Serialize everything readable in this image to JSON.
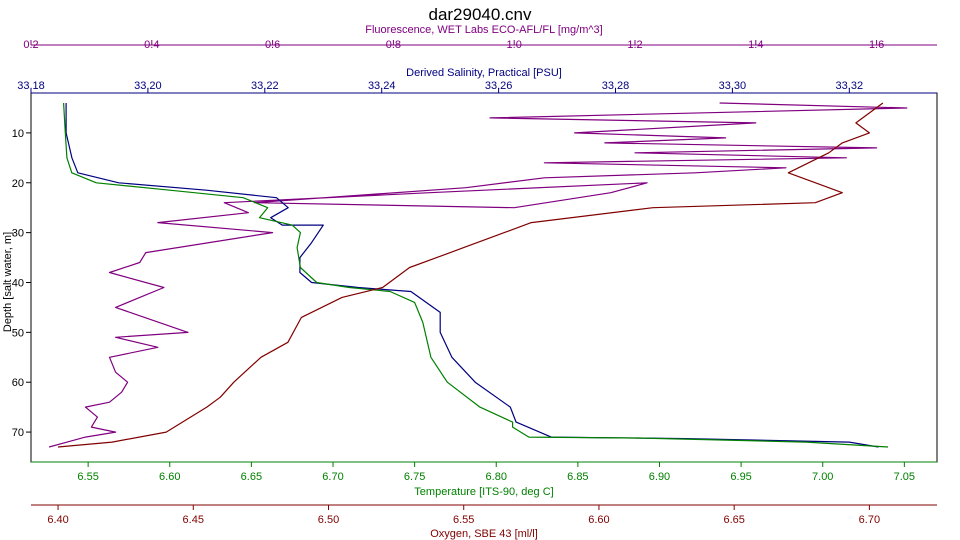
{
  "chart_data": {
    "type": "line",
    "title": "dar29040.cnv",
    "grid": false,
    "legend": "none",
    "y_axis": {
      "label": "Depth [salt water, m]",
      "ticks": [
        "10",
        "20",
        "30",
        "40",
        "50",
        "60",
        "70"
      ],
      "range": [
        2,
        76
      ],
      "inverted": true,
      "color": "#000000"
    },
    "top_axes": [
      {
        "key": "fluorescence",
        "label": "Fluorescence, WET Labs ECO-AFL/FL [mg/m^3]",
        "ticks": [
          "0.2",
          "0.4",
          "0.6",
          "0.8",
          "1.0",
          "1.2",
          "1.4",
          "1.6"
        ],
        "range": [
          0.2,
          1.7
        ],
        "color": "#800080"
      },
      {
        "key": "salinity",
        "label": "Derived Salinity, Practical [PSU]",
        "ticks": [
          "33.18",
          "33.20",
          "33.22",
          "33.24",
          "33.26",
          "33.28",
          "33.30",
          "33.32"
        ],
        "range": [
          33.18,
          33.335
        ],
        "color": "#000080"
      }
    ],
    "bottom_axes": [
      {
        "key": "temperature",
        "label": "Temperature [ITS-90, deg C]",
        "ticks": [
          "6.55",
          "6.60",
          "6.65",
          "6.70",
          "6.75",
          "6.80",
          "6.85",
          "6.90",
          "6.95",
          "7.00",
          "7.05"
        ],
        "range": [
          6.515,
          7.07
        ],
        "color": "#008000"
      },
      {
        "key": "oxygen",
        "label": "Oxygen, SBE 43 [ml/l]",
        "ticks": [
          "6.40",
          "6.45",
          "6.50",
          "6.55",
          "6.60",
          "6.65",
          "6.70"
        ],
        "range": [
          6.39,
          6.725
        ],
        "color": "#800000"
      }
    ],
    "series": [
      {
        "key": "fluorescence",
        "color": "#800080",
        "x": [
          1.34,
          1.65,
          0.96,
          1.4,
          1.1,
          1.35,
          1.15,
          1.6,
          1.2,
          1.55,
          1.05,
          1.45,
          1.3,
          1.05,
          0.92,
          0.57,
          1.0,
          1.16,
          1.22,
          0.86,
          0.52,
          0.56,
          0.41,
          0.6,
          0.39,
          0.38,
          0.33,
          0.42,
          0.34,
          0.46,
          0.34,
          0.41,
          0.33,
          0.34,
          0.36,
          0.35,
          0.33,
          0.29,
          0.3,
          0.31,
          0.3,
          0.34,
          0.29,
          0.26,
          0.23
        ],
        "y": [
          4,
          5,
          7,
          8,
          10,
          11,
          12,
          13,
          14,
          15,
          16,
          17,
          18,
          19,
          21,
          24,
          25,
          22,
          20,
          22,
          24,
          26,
          28,
          30,
          34,
          36,
          38,
          41,
          45,
          50,
          51,
          53,
          55,
          58,
          60,
          62,
          64,
          65,
          66,
          67,
          69,
          70,
          71,
          72,
          73
        ]
      },
      {
        "key": "salinity",
        "color": "#000080",
        "x": [
          33.186,
          33.186,
          33.187,
          33.188,
          33.195,
          33.21,
          33.222,
          33.224,
          33.221,
          33.223,
          33.23,
          33.228,
          33.226,
          33.226,
          33.228,
          33.236,
          33.245,
          33.25,
          33.25,
          33.252,
          33.256,
          33.262,
          33.263,
          33.269,
          33.292,
          33.32,
          33.325
        ],
        "y": [
          4,
          10,
          15,
          18,
          20,
          21.5,
          23,
          25,
          27,
          28.5,
          28.5,
          32,
          35,
          38,
          40,
          41,
          41.8,
          46,
          50,
          55,
          60,
          65,
          68,
          71,
          71.3,
          72,
          73
        ]
      },
      {
        "key": "temperature",
        "color": "#008000",
        "x": [
          6.535,
          6.536,
          6.537,
          6.54,
          6.555,
          6.6,
          6.645,
          6.66,
          6.655,
          6.675,
          6.68,
          6.678,
          6.68,
          6.69,
          6.71,
          6.735,
          6.75,
          6.755,
          6.76,
          6.77,
          6.79,
          6.81,
          6.81,
          6.82,
          6.89,
          6.99,
          7.04
        ],
        "y": [
          4,
          10,
          15,
          18,
          20,
          21.5,
          23,
          25,
          27,
          28.5,
          30,
          33,
          37,
          40,
          41,
          41.8,
          44,
          48,
          55,
          60,
          65,
          68,
          69,
          71,
          71.2,
          72,
          73
        ]
      },
      {
        "key": "oxygen",
        "color": "#800000",
        "x": [
          6.705,
          6.695,
          6.7,
          6.69,
          6.685,
          6.67,
          6.69,
          6.68,
          6.62,
          6.575,
          6.565,
          6.55,
          6.54,
          6.53,
          6.525,
          6.52,
          6.505,
          6.49,
          6.485,
          6.475,
          6.465,
          6.46,
          6.455,
          6.44,
          6.42,
          6.4
        ],
        "y": [
          4,
          8,
          10,
          12,
          14,
          18,
          22,
          24,
          25,
          28,
          30,
          33,
          35,
          37,
          39,
          41,
          43,
          47,
          52,
          55,
          60,
          63,
          65,
          70,
          72,
          73
        ]
      }
    ]
  }
}
